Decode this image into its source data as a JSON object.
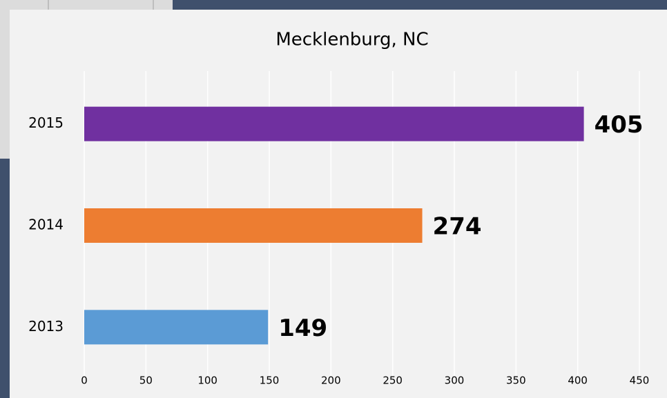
{
  "chart_data": {
    "type": "hbar",
    "title": "Mecklenburg, NC",
    "categories": [
      "2013",
      "2014",
      "2015"
    ],
    "values": [
      149,
      274,
      405
    ],
    "colors": [
      "#5b9bd5",
      "#ed7d31",
      "#7030a0"
    ],
    "xlim": [
      0,
      450
    ],
    "xticks": [
      0,
      50,
      100,
      150,
      200,
      250,
      300,
      350,
      400,
      450
    ],
    "grid": true
  }
}
